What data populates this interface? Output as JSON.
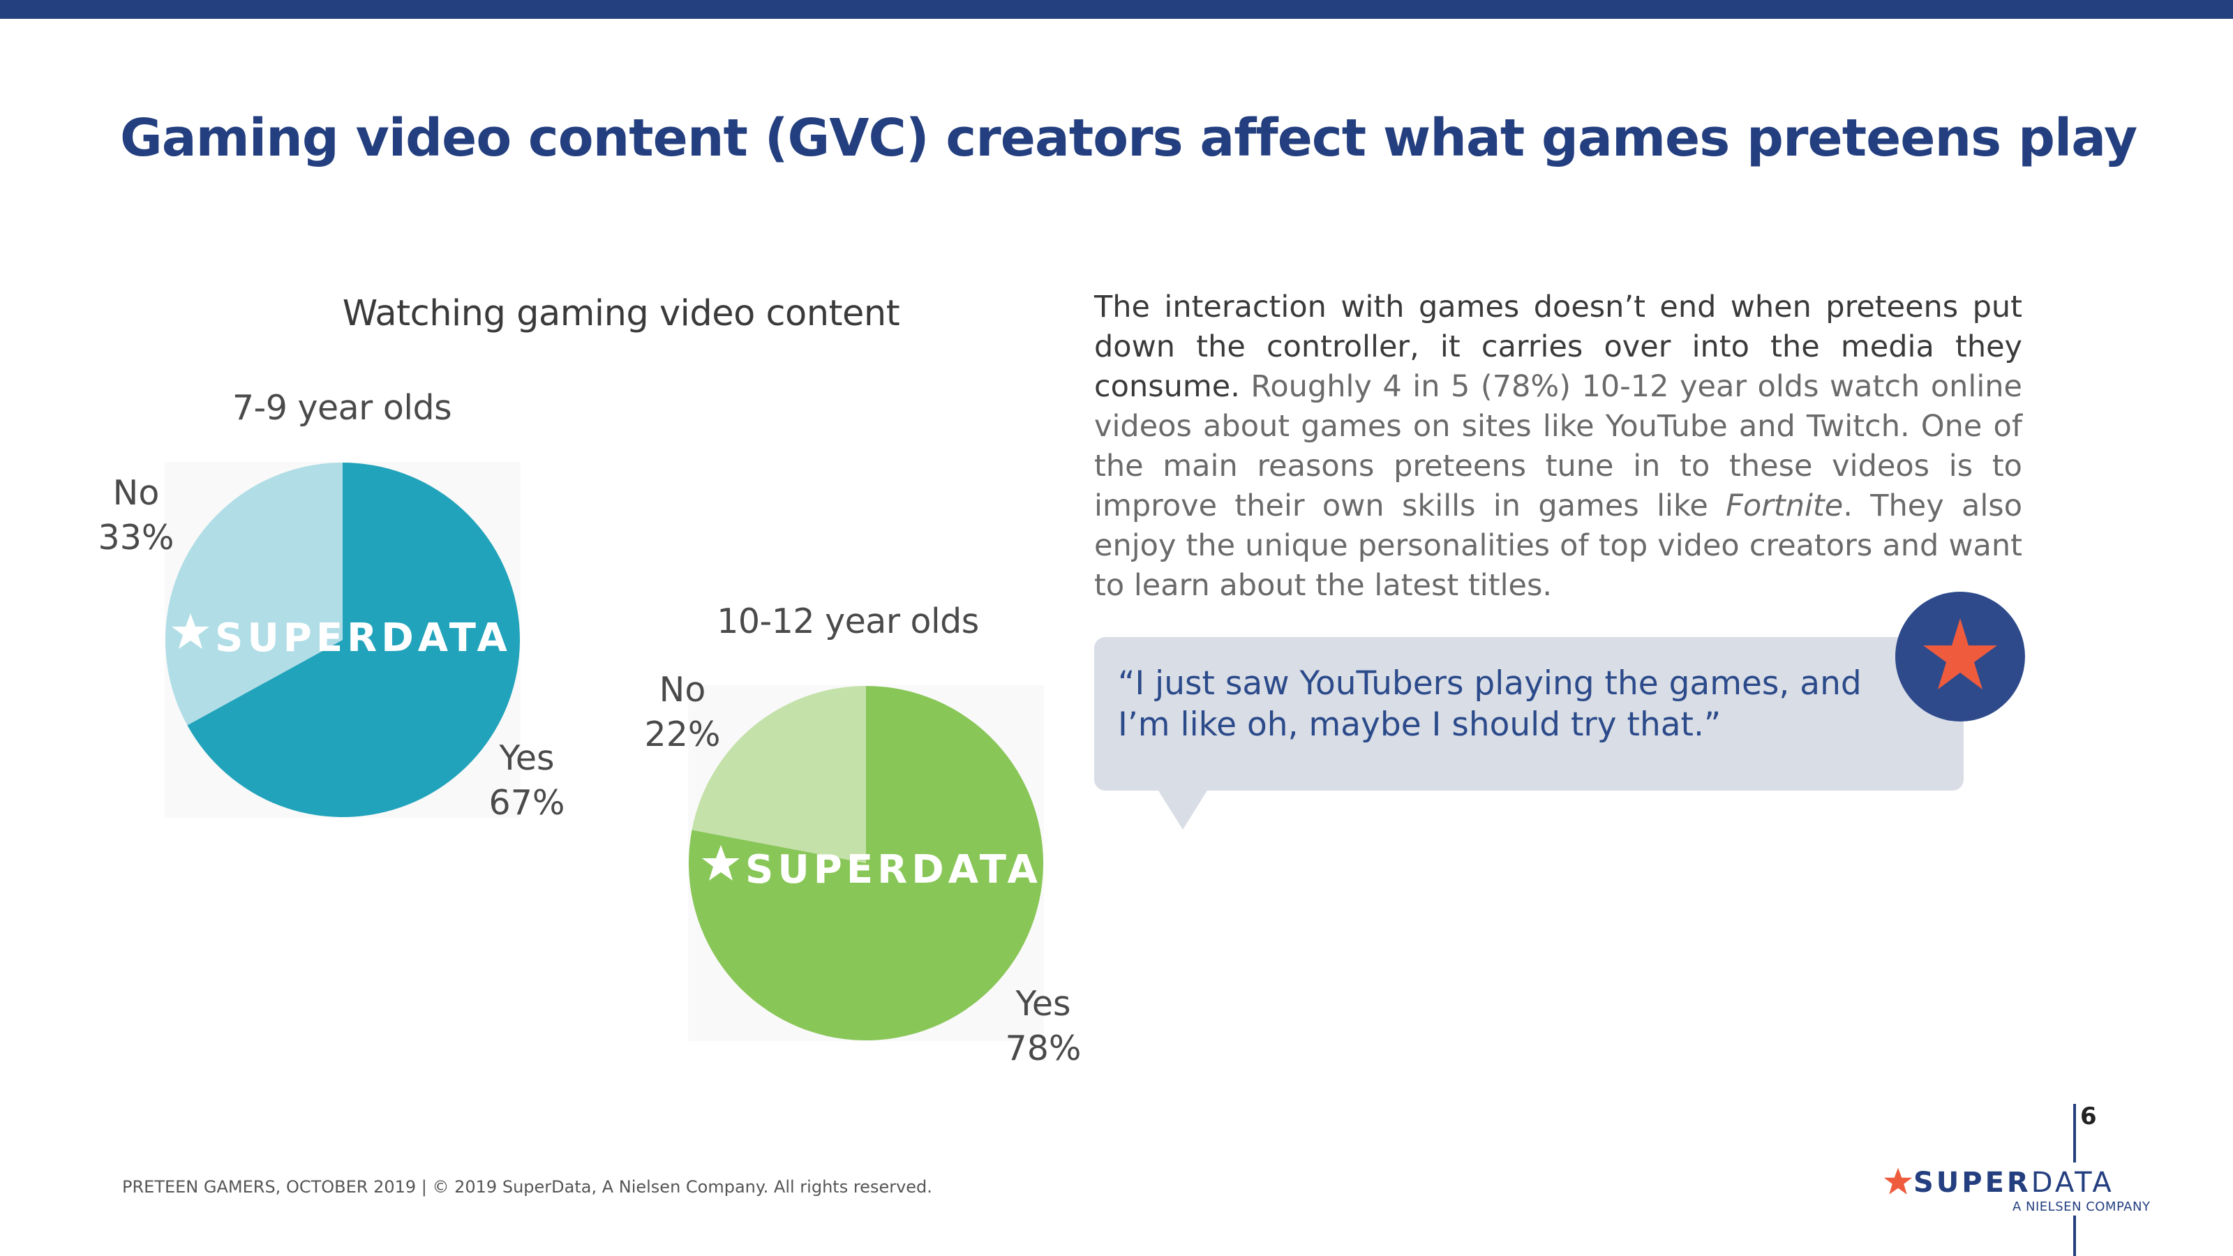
{
  "title": "Gaming video content (GVC) creators affect what games preteens play",
  "chart_data": {
    "type": "pie",
    "title": "Watching gaming video content",
    "pies": [
      {
        "title": "7-9 year olds",
        "slices": [
          {
            "label": "Yes",
            "value": 67,
            "value_label": "67%",
            "color": "#21a3bb"
          },
          {
            "label": "No",
            "value": 33,
            "value_label": "33%",
            "color": "#b0dde6"
          }
        ],
        "watermark": "SUPERDATA"
      },
      {
        "title": "10-12 year olds",
        "slices": [
          {
            "label": "Yes",
            "value": 78,
            "value_label": "78%",
            "color": "#89c658"
          },
          {
            "label": "No",
            "value": 22,
            "value_label": "22%",
            "color": "#c4e1aa"
          }
        ],
        "watermark": "SUPERDATA"
      }
    ]
  },
  "body": {
    "lead": "The interaction with games doesn’t end when preteens put down the controller, it carries over into the media they consume.",
    "text_before": " Roughly 4 in 5 (78%) 10-12 year olds watch online videos about games on sites like YouTube and Twitch. One of the main reasons preteens tune in to these videos is to improve their own skills in games like ",
    "text_italic": "Fortnite",
    "text_after": ". They also enjoy the unique personalities of top video creators and want to learn about the latest titles."
  },
  "quote": "“I just saw YouTubers playing the games, and I’m like oh, maybe I should try that.”",
  "icons": {
    "quote_badge": "star-icon",
    "logo": "star-icon"
  },
  "footer": "PRETEEN GAMERS, OCTOBER 2019  |  © 2019 SuperData, A Nielsen Company. All rights reserved.",
  "page_number": "6",
  "logo": {
    "super": "SUPER",
    "data": "DATA",
    "subtitle": "A NIELSEN COMPANY"
  },
  "colors": {
    "brand_navy": "#24407e",
    "star_red": "#ef5b3d",
    "quote_text": "#2b4a8a"
  }
}
